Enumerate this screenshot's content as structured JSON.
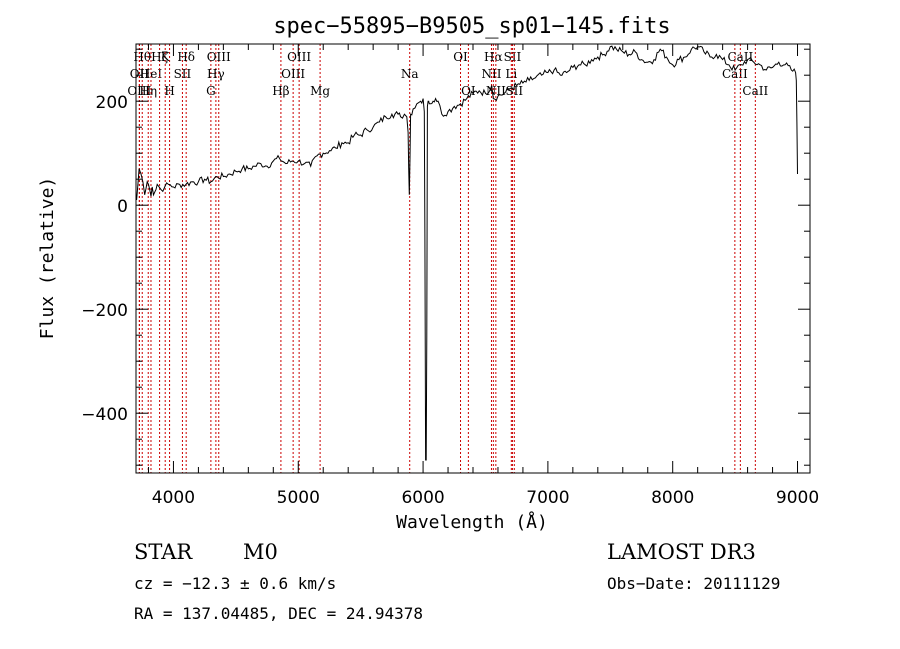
{
  "chart_data": {
    "type": "line",
    "title": "spec−55895−B9505_sp01−145.fits",
    "xlabel": "Wavelength (Å)",
    "ylabel": "Flux (relative)",
    "xlim": [
      3700,
      9100
    ],
    "ylim": [
      -515,
      310
    ],
    "xticks": [
      4000,
      5000,
      6000,
      7000,
      8000,
      9000
    ],
    "xtick_labels": [
      "4000",
      "5000",
      "6000",
      "7000",
      "8000",
      "9000"
    ],
    "yticks": [
      200,
      0,
      -200,
      -400
    ],
    "ytick_labels": [
      "200",
      "0",
      "−200",
      "−400"
    ],
    "grid": false,
    "series": [
      {
        "x": [
          3705,
          3715,
          3725,
          3740,
          3755,
          3770,
          3790,
          3810,
          3830,
          3850,
          3870,
          3900,
          3930,
          3960,
          4000,
          4050,
          4100,
          4150,
          4200,
          4250,
          4300,
          4350,
          4400,
          4450,
          4500,
          4550,
          4600,
          4650,
          4700,
          4750,
          4800,
          4850,
          4900,
          4950,
          5000,
          5050,
          5100,
          5150,
          5200,
          5250,
          5300,
          5350,
          5400,
          5450,
          5500,
          5550,
          5600,
          5650,
          5700,
          5750,
          5800,
          5820,
          5850,
          5870,
          5880,
          5885,
          5890,
          5895,
          5900,
          5920,
          5950,
          5980,
          6000,
          6010,
          6015,
          6020,
          6025,
          6030,
          6035,
          6040,
          6045,
          6050,
          6060,
          6080,
          6100,
          6120,
          6150,
          6200,
          6250,
          6300,
          6350,
          6400,
          6450,
          6500,
          6550,
          6563,
          6600,
          6650,
          6700,
          6750,
          6800,
          6850,
          6900,
          6950,
          7000,
          7050,
          7100,
          7150,
          7200,
          7250,
          7300,
          7350,
          7400,
          7450,
          7500,
          7550,
          7600,
          7650,
          7700,
          7750,
          7800,
          7850,
          7900,
          7950,
          8000,
          8050,
          8100,
          8150,
          8200,
          8250,
          8300,
          8350,
          8400,
          8450,
          8500,
          8550,
          8600,
          8650,
          8700,
          8750,
          8800,
          8850,
          8900,
          8950,
          8985,
          8990,
          8995,
          9000
        ],
        "values": [
          10,
          40,
          70,
          60,
          45,
          20,
          45,
          30,
          35,
          25,
          40,
          30,
          35,
          40,
          35,
          40,
          40,
          45,
          45,
          50,
          45,
          55,
          55,
          60,
          65,
          70,
          70,
          75,
          80,
          75,
          85,
          90,
          80,
          85,
          85,
          80,
          75,
          95,
          100,
          105,
          110,
          120,
          120,
          135,
          135,
          145,
          150,
          160,
          170,
          175,
          175,
          170,
          175,
          170,
          140,
          70,
          20,
          90,
          175,
          185,
          195,
          200,
          205,
          180,
          -60,
          -490,
          -490,
          -250,
          190,
          200,
          200,
          195,
          195,
          200,
          205,
          200,
          175,
          180,
          190,
          195,
          205,
          215,
          220,
          215,
          230,
          205,
          210,
          215,
          225,
          230,
          235,
          240,
          245,
          250,
          255,
          260,
          250,
          255,
          265,
          270,
          270,
          280,
          285,
          290,
          305,
          300,
          295,
          290,
          295,
          280,
          275,
          280,
          300,
          285,
          270,
          280,
          285,
          300,
          305,
          295,
          285,
          290,
          280,
          270,
          260,
          270,
          280,
          275,
          270,
          260,
          265,
          275,
          270,
          260,
          255,
          240,
          160,
          60
        ]
      }
    ],
    "lines": [
      {
        "x": 3750,
        "label": "Hθ",
        "row": 1,
        "dx": 0
      },
      {
        "x": 3727,
        "label": "OII",
        "row": 2,
        "dx": 0
      },
      {
        "x": 3727,
        "label": "OIII",
        "row": 3,
        "dx": 0
      },
      {
        "x": 3798,
        "label": "Hη",
        "row": 3,
        "dx": 0
      },
      {
        "x": 3820,
        "label": "HeI",
        "row": 2,
        "dx": 0
      },
      {
        "x": 3889,
        "label": "Hζ",
        "row": 1,
        "dx": 0
      },
      {
        "x": 3934,
        "label": "K",
        "row": 1,
        "dx": 0
      },
      {
        "x": 3969,
        "label": "H",
        "row": 3,
        "dx": 0
      },
      {
        "x": 4072,
        "label": "SII",
        "row": 2,
        "dx": 0
      },
      {
        "x": 4102,
        "label": "Hδ",
        "row": 1,
        "dx": 0
      },
      {
        "x": 4300,
        "label": "G",
        "row": 3,
        "dx": 0
      },
      {
        "x": 4340,
        "label": "Hγ",
        "row": 2,
        "dx": 0
      },
      {
        "x": 4363,
        "label": "OIII",
        "row": 1,
        "dx": 0
      },
      {
        "x": 4861,
        "label": "Hβ",
        "row": 3,
        "dx": 0
      },
      {
        "x": 4959,
        "label": "OIII",
        "row": 2,
        "dx": 0
      },
      {
        "x": 5007,
        "label": "OIII",
        "row": 1,
        "dx": 0
      },
      {
        "x": 5175,
        "label": "Mg",
        "row": 3,
        "dx": 0
      },
      {
        "x": 5893,
        "label": "Na",
        "row": 2,
        "dx": 0
      },
      {
        "x": 6300,
        "label": "OI",
        "row": 1,
        "dx": 0
      },
      {
        "x": 6363,
        "label": "OI",
        "row": 3,
        "dx": 0
      },
      {
        "x": 6548,
        "label": "NII",
        "row": 2,
        "dx": 0
      },
      {
        "x": 6563,
        "label": "Hα",
        "row": 1,
        "dx": 0
      },
      {
        "x": 6583,
        "label": "NII",
        "row": 3,
        "dx": 0
      },
      {
        "x": 6707,
        "label": "Li",
        "row": 2,
        "dx": 0
      },
      {
        "x": 6716,
        "label": "SII",
        "row": 1,
        "dx": 0
      },
      {
        "x": 6731,
        "label": "SII",
        "row": 3,
        "dx": 0
      },
      {
        "x": 8498,
        "label": "CaII",
        "row": 2,
        "dx": 0
      },
      {
        "x": 8542,
        "label": "CaII",
        "row": 1,
        "dx": 0
      },
      {
        "x": 8662,
        "label": "CaII",
        "row": 3,
        "dx": 0
      }
    ]
  },
  "info": {
    "class_text": "STAR",
    "subclass_text": "M0",
    "survey_text": "LAMOST DR3",
    "cz_text": "cz = −12.3 ± 0.6 km/s",
    "obsdate_text": "Obs−Date: 20111129",
    "radec_text": "RA = 137.04485, DEC =  24.94378"
  },
  "colors": {
    "spectrum": "#000000",
    "line_markers": "#cc0000",
    "axes": "#000000"
  }
}
